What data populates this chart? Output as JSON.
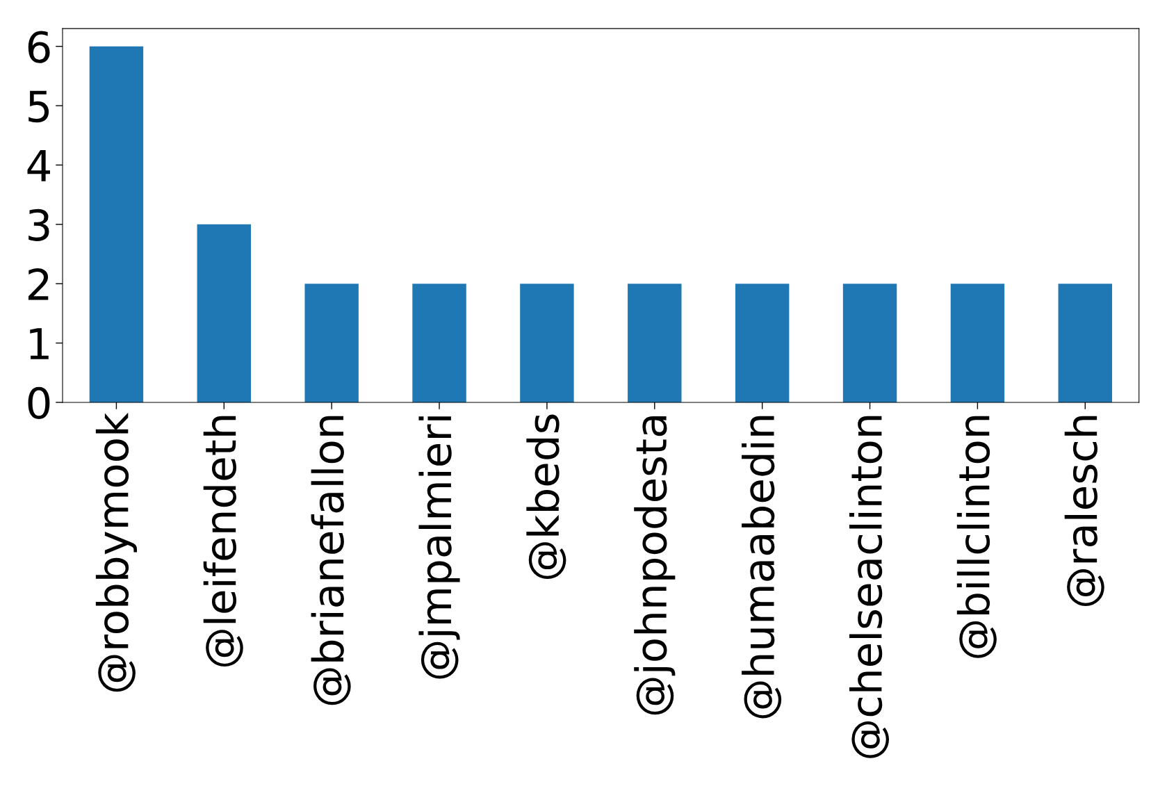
{
  "chart_data": {
    "type": "bar",
    "categories": [
      "@robbymook",
      "@leifendeth",
      "@brianefallon",
      "@jmpalmieri",
      "@kbeds",
      "@johnpodesta",
      "@humaabedin",
      "@chelseaclinton",
      "@billclinton",
      "@ralesch"
    ],
    "values": [
      6,
      3,
      2,
      2,
      2,
      2,
      2,
      2,
      2,
      2
    ],
    "color": "#1f77b4",
    "ylim": [
      0,
      6.3
    ],
    "yticks": [
      0,
      1,
      2,
      3,
      4,
      5,
      6
    ]
  }
}
